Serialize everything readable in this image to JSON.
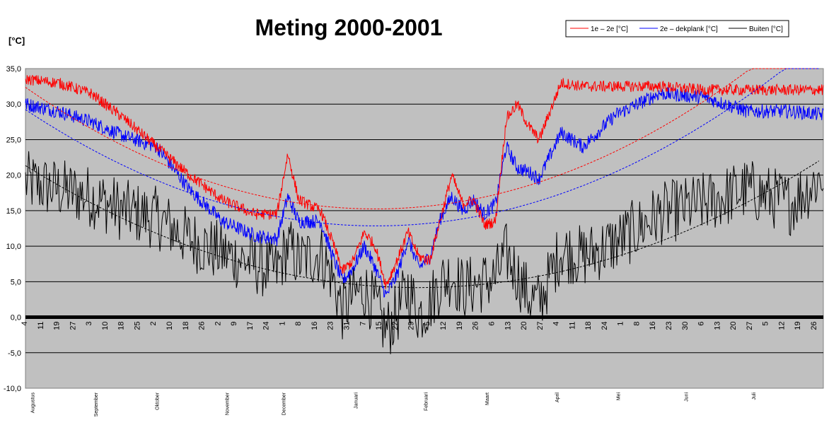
{
  "chart_data": {
    "type": "line",
    "title": "Meting 2000-2001",
    "ylabel": "[°C]",
    "ylim": [
      -10,
      35
    ],
    "yticks": [
      "35,0",
      "30,0",
      "25,0",
      "20,0",
      "15,0",
      "10,0",
      "5,0",
      "0,0",
      "-5,0",
      "-10,0"
    ],
    "xlim": [
      0,
      365
    ],
    "x_tick_labels": [
      "4",
      "11",
      "19",
      "27",
      "3",
      "10",
      "18",
      "25",
      "2",
      "10",
      "18",
      "26",
      "2",
      "9",
      "17",
      "24",
      "1",
      "8",
      "16",
      "23",
      "31",
      "7",
      "15",
      "22",
      "29",
      "5",
      "12",
      "19",
      "26",
      "6",
      "13",
      "20",
      "27",
      "4",
      "11",
      "18",
      "24",
      "1",
      "8",
      "16",
      "23",
      "30",
      "6",
      "13",
      "20",
      "27",
      "5",
      "12",
      "19",
      "26"
    ],
    "months": [
      {
        "label": "Augustus",
        "day": 3
      },
      {
        "label": "September",
        "day": 32
      },
      {
        "label": "Oktober",
        "day": 60
      },
      {
        "label": "November",
        "day": 92
      },
      {
        "label": "December",
        "day": 118
      },
      {
        "label": "Januari",
        "day": 151
      },
      {
        "label": "Februari",
        "day": 183
      },
      {
        "label": "Maart",
        "day": 211
      },
      {
        "label": "April",
        "day": 243
      },
      {
        "label": "Mei",
        "day": 271
      },
      {
        "label": "Juni",
        "day": 302
      },
      {
        "label": "Juli",
        "day": 333
      }
    ],
    "grid": true,
    "legend_position": "top-right",
    "series": [
      {
        "name": "1e – 2e [°C]",
        "color": "#ff0000",
        "x": [
          0,
          15,
          30,
          45,
          60,
          75,
          90,
          105,
          115,
          120,
          125,
          135,
          140,
          145,
          150,
          155,
          160,
          165,
          170,
          175,
          180,
          185,
          190,
          195,
          200,
          205,
          210,
          215,
          220,
          225,
          230,
          235,
          245,
          255,
          270,
          290,
          310,
          330,
          350,
          365
        ],
        "y": [
          33.5,
          33.0,
          31.5,
          28.0,
          24.0,
          20.0,
          16.5,
          14.5,
          14.5,
          23.0,
          16.5,
          15.0,
          11.0,
          6.5,
          8.0,
          12.0,
          10.0,
          4.5,
          8.0,
          12.0,
          8.5,
          8.0,
          14.0,
          20.0,
          16.0,
          16.5,
          13.0,
          13.5,
          28.0,
          30.0,
          27.0,
          25.0,
          33.0,
          32.5,
          32.5,
          32.5,
          32.0,
          32.0,
          32.0,
          32.0
        ]
      },
      {
        "name": "2e – dekplank [°C]",
        "color": "#0000ff",
        "x": [
          0,
          15,
          30,
          45,
          60,
          75,
          90,
          105,
          115,
          120,
          125,
          135,
          140,
          145,
          150,
          155,
          160,
          165,
          170,
          175,
          180,
          185,
          190,
          195,
          200,
          205,
          210,
          215,
          220,
          225,
          230,
          235,
          245,
          255,
          270,
          290,
          310,
          330,
          350,
          365
        ],
        "y": [
          30.0,
          29.0,
          27.5,
          25.5,
          24.0,
          18.0,
          13.5,
          11.5,
          11.0,
          17.0,
          13.5,
          13.5,
          9.0,
          5.0,
          7.0,
          10.0,
          7.0,
          3.0,
          6.0,
          11.0,
          7.0,
          8.5,
          14.0,
          17.0,
          15.0,
          16.5,
          14.5,
          16.0,
          24.0,
          21.0,
          20.5,
          19.5,
          26.0,
          24.0,
          28.5,
          31.5,
          31.0,
          29.0,
          29.0,
          28.5
        ]
      },
      {
        "name": "Buiten [°C]",
        "color": "#000000",
        "x": [
          0,
          15,
          30,
          45,
          60,
          75,
          90,
          105,
          115,
          120,
          125,
          135,
          140,
          145,
          150,
          155,
          160,
          165,
          170,
          175,
          180,
          185,
          190,
          195,
          200,
          205,
          210,
          215,
          220,
          225,
          230,
          235,
          245,
          255,
          270,
          290,
          310,
          330,
          350,
          365
        ],
        "y": [
          19.0,
          18.0,
          17.0,
          15.0,
          14.0,
          11.0,
          9.0,
          7.5,
          6.5,
          10.0,
          8.0,
          9.0,
          6.0,
          1.0,
          3.0,
          4.0,
          1.5,
          -2.0,
          0.5,
          4.0,
          0.5,
          2.0,
          5.0,
          6.0,
          4.0,
          4.5,
          5.0,
          5.5,
          9.0,
          6.0,
          3.0,
          2.0,
          9.5,
          8.5,
          10.5,
          14.5,
          16.0,
          18.0,
          16.0,
          20.0
        ]
      }
    ]
  }
}
